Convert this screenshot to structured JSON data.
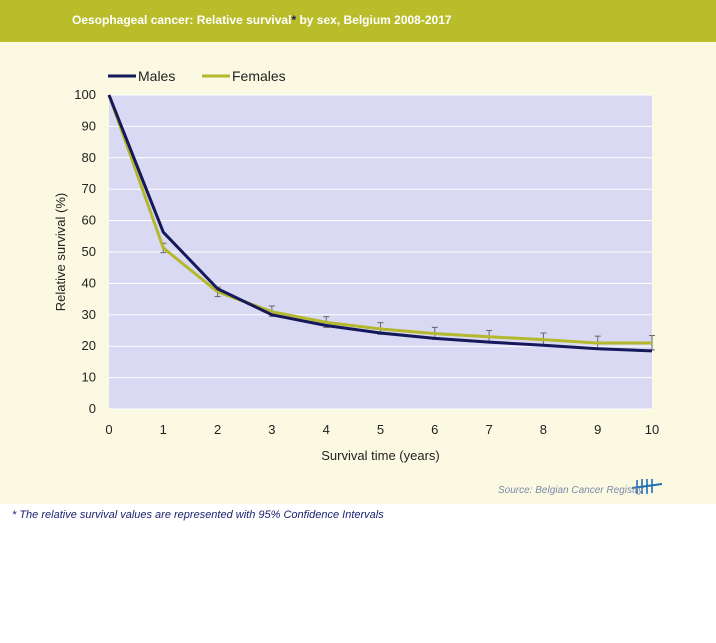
{
  "header": {
    "title_prefix": "Oesophageal cancer: Relative survival",
    "title_star": "*",
    "title_suffix": " by sex, Belgium 2008-2017"
  },
  "footnote": "*  The relative survival values are represented with 95% Confidence Intervals",
  "source": "Source: Belgian Cancer Registry",
  "colors": {
    "header_bg": "#b9bd2a",
    "panel_bg": "#fbf9e2",
    "plot_bg": "#d9d9f3",
    "males": "#15185a",
    "females": "#b3b82c"
  },
  "chart_data": {
    "type": "line",
    "xlabel": "Survival time (years)",
    "ylabel": "Relative survival (%)",
    "xlim": [
      0,
      10
    ],
    "ylim": [
      0,
      100
    ],
    "xticks": [
      "0",
      "1",
      "2",
      "3",
      "4",
      "5",
      "6",
      "7",
      "8",
      "9",
      "10"
    ],
    "yticks": [
      "0",
      "10",
      "20",
      "30",
      "40",
      "50",
      "60",
      "70",
      "80",
      "90",
      "100"
    ],
    "legend_position": "top-left",
    "grid": true,
    "x": [
      0,
      1,
      2,
      3,
      4,
      5,
      6,
      7,
      8,
      9,
      10
    ],
    "series": [
      {
        "name": "Males",
        "values": [
          100,
          56.3,
          38.3,
          30.0,
          26.6,
          24.2,
          22.5,
          21.3,
          20.3,
          19.2,
          18.5
        ]
      },
      {
        "name": "Females",
        "values": [
          100,
          51.3,
          37.3,
          31.0,
          27.6,
          25.5,
          24.0,
          23.0,
          22.1,
          21.0,
          21.0
        ],
        "ci_low": [
          100,
          49.8,
          35.8,
          29.5,
          26.0,
          23.8,
          22.2,
          21.2,
          20.2,
          19.0,
          18.8
        ],
        "ci_high": [
          100,
          52.8,
          38.8,
          32.8,
          29.4,
          27.5,
          26.0,
          25.0,
          24.2,
          23.2,
          23.4
        ]
      }
    ]
  }
}
